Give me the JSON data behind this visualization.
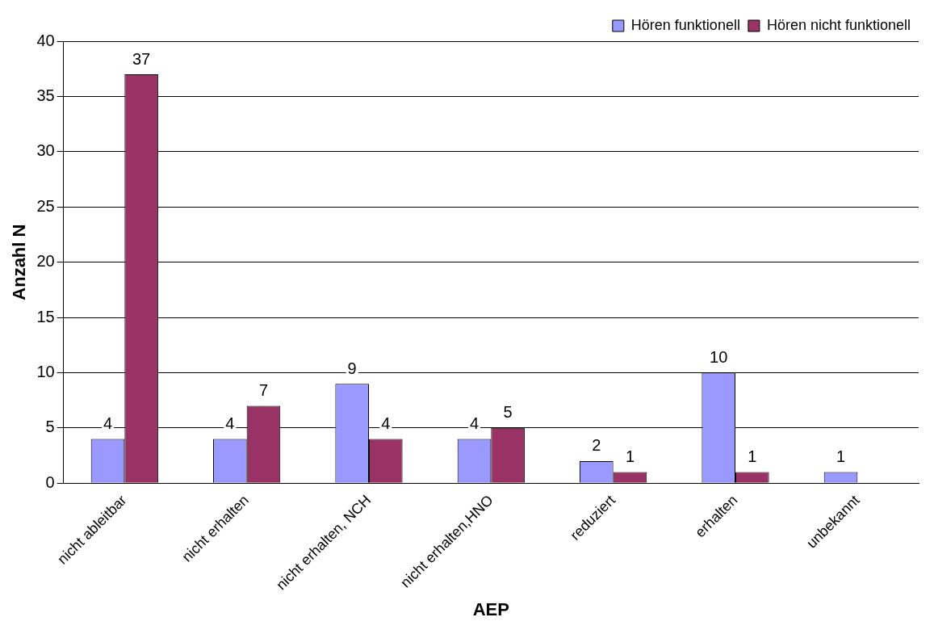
{
  "chart_data": {
    "type": "bar",
    "xlabel": "AEP",
    "ylabel": "Anzahl N",
    "categories": [
      "nicht ableitbar",
      "nicht erhalten",
      "nicht erhalten, NCH",
      "nicht erhalten,HNO",
      "reduziert",
      "erhalten",
      "unbekannt"
    ],
    "series": [
      {
        "name": "Hören funktionell",
        "color": "#9999ff",
        "values": [
          4,
          4,
          9,
          4,
          2,
          10,
          1
        ]
      },
      {
        "name": "Hören nicht funktionell",
        "color": "#993366",
        "values": [
          37,
          7,
          4,
          5,
          1,
          1,
          null
        ]
      }
    ],
    "ylim": [
      0,
      40
    ],
    "yticks": [
      0,
      5,
      10,
      15,
      20,
      25,
      30,
      35,
      40
    ],
    "grid": "y",
    "legend": "top right",
    "data_labels": true
  }
}
